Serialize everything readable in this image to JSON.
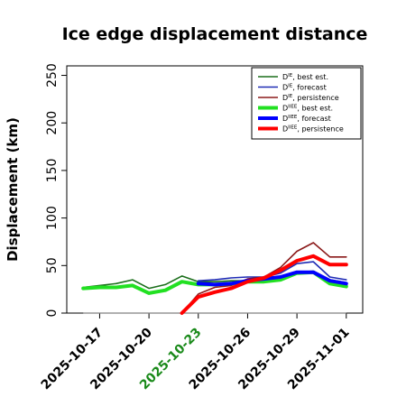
{
  "chart_data": {
    "type": "line",
    "title": "Ice edge displacement distance",
    "xlabel": "",
    "ylabel": "Displacement (km)",
    "ylim": [
      0,
      260
    ],
    "xlim": [
      "2025-10-15",
      "2025-11-02"
    ],
    "y_ticks": [
      0,
      50,
      100,
      150,
      200,
      250
    ],
    "x_ticks": [
      {
        "label": "2025-10-17",
        "date": "2025-10-17",
        "color": "#000000"
      },
      {
        "label": "2025-10-20",
        "date": "2025-10-20",
        "color": "#000000"
      },
      {
        "label": "2025-10-23",
        "date": "2025-10-23",
        "color": "#1a8a1a"
      },
      {
        "label": "2025-10-26",
        "date": "2025-10-26",
        "color": "#000000"
      },
      {
        "label": "2025-10-29",
        "date": "2025-10-29",
        "color": "#000000"
      },
      {
        "label": "2025-11-01",
        "date": "2025-11-01",
        "color": "#000000"
      }
    ],
    "grid": false,
    "legend_position": "top-right",
    "reference_line": {
      "y": 0,
      "from": "2025-10-16",
      "to": "2025-11-01",
      "color": "#808080"
    },
    "series": [
      {
        "name": "D^IE, best est.",
        "color": "#1b6e1b",
        "width": 1.6,
        "x": [
          "2025-10-16",
          "2025-10-17",
          "2025-10-18",
          "2025-10-19",
          "2025-10-20",
          "2025-10-21",
          "2025-10-22",
          "2025-10-23",
          "2025-10-24",
          "2025-10-25",
          "2025-10-26",
          "2025-10-27",
          "2025-10-28",
          "2025-10-29",
          "2025-10-30",
          "2025-10-31",
          "2025-11-01"
        ],
        "y": [
          27,
          29,
          31,
          35,
          26,
          30,
          39,
          33,
          33,
          34,
          34,
          35,
          37,
          43,
          44,
          35,
          32
        ]
      },
      {
        "name": "D^IE, forecast",
        "color": "#1f2bb5",
        "width": 1.6,
        "x": [
          "2025-10-23",
          "2025-10-24",
          "2025-10-25",
          "2025-10-26",
          "2025-10-27",
          "2025-10-28",
          "2025-10-29",
          "2025-10-30",
          "2025-10-31",
          "2025-11-01"
        ],
        "y": [
          34,
          35,
          37,
          38,
          38,
          42,
          52,
          54,
          38,
          35
        ]
      },
      {
        "name": "D^IE, persistence",
        "color": "#8b1a1a",
        "width": 1.6,
        "x": [
          "2025-10-22",
          "2025-10-23",
          "2025-10-24",
          "2025-10-25",
          "2025-10-26",
          "2025-10-27",
          "2025-10-28",
          "2025-10-29",
          "2025-10-30",
          "2025-10-31",
          "2025-11-01"
        ],
        "y": [
          0,
          20,
          27,
          29,
          36,
          38,
          48,
          65,
          74,
          59,
          59
        ]
      },
      {
        "name": "D^IIEE, best est.",
        "color": "#22e022",
        "width": 4,
        "x": [
          "2025-10-16",
          "2025-10-17",
          "2025-10-18",
          "2025-10-19",
          "2025-10-20",
          "2025-10-21",
          "2025-10-22",
          "2025-10-23",
          "2025-10-24",
          "2025-10-25",
          "2025-10-26",
          "2025-10-27",
          "2025-10-28",
          "2025-10-29",
          "2025-10-30",
          "2025-10-31",
          "2025-11-01"
        ],
        "y": [
          26,
          27,
          27,
          29,
          21,
          24,
          33,
          30,
          30,
          31,
          33,
          33,
          35,
          42,
          43,
          31,
          28
        ]
      },
      {
        "name": "D^IIEE, forecast",
        "color": "#0000ff",
        "width": 4,
        "x": [
          "2025-10-23",
          "2025-10-24",
          "2025-10-25",
          "2025-10-26",
          "2025-10-27",
          "2025-10-28",
          "2025-10-29",
          "2025-10-30",
          "2025-10-31",
          "2025-11-01"
        ],
        "y": [
          31,
          30,
          31,
          34,
          36,
          38,
          43,
          43,
          34,
          31
        ]
      },
      {
        "name": "D^IIEE, persistence",
        "color": "#ff0000",
        "width": 4,
        "x": [
          "2025-10-22",
          "2025-10-23",
          "2025-10-24",
          "2025-10-25",
          "2025-10-26",
          "2025-10-27",
          "2025-10-28",
          "2025-10-29",
          "2025-10-30",
          "2025-10-31",
          "2025-11-01"
        ],
        "y": [
          0,
          17,
          22,
          26,
          33,
          37,
          45,
          55,
          60,
          51,
          51
        ]
      }
    ],
    "legend": [
      {
        "main": "D",
        "sup": "IE",
        "suffix": ", best est."
      },
      {
        "main": "D",
        "sup": "IE",
        "suffix": ", forecast"
      },
      {
        "main": "D",
        "sup": "IE",
        "suffix": ", persistence"
      },
      {
        "main": "D",
        "sup": "IIEE",
        "suffix": ", best est."
      },
      {
        "main": "D",
        "sup": "IIEE",
        "suffix": ", forecast"
      },
      {
        "main": "D",
        "sup": "IIEE",
        "suffix": ", persistence"
      }
    ]
  }
}
